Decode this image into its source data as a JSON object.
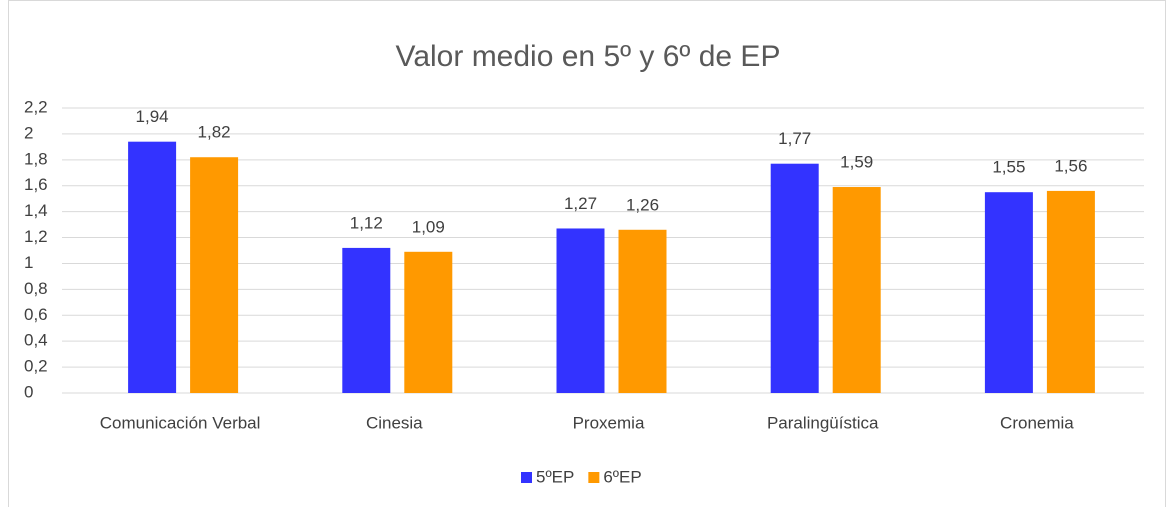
{
  "chart_data": {
    "type": "bar",
    "title": "Valor medio en 5º y 6º de EP",
    "categories": [
      "Comunicación Verbal",
      "Cinesia",
      "Proxemia",
      "Paralingüística",
      "Cronemia"
    ],
    "series": [
      {
        "name": "5ºEP",
        "color": "#3333ff",
        "values": [
          1.94,
          1.12,
          1.27,
          1.77,
          1.55
        ],
        "value_labels": [
          "1,94",
          "1,12",
          "1,27",
          "1,77",
          "1,55"
        ]
      },
      {
        "name": "6ºEP",
        "color": "#ff9900",
        "values": [
          1.82,
          1.09,
          1.26,
          1.59,
          1.56
        ],
        "value_labels": [
          "1,82",
          "1,09",
          "1,26",
          "1,59",
          "1,56"
        ]
      }
    ],
    "ylim": [
      0,
      2.2
    ],
    "yticks": [
      0,
      {
        "value": 0.2,
        "label": "0,2"
      },
      {
        "value": 0.4,
        "label": "0,4"
      },
      {
        "value": 0.6,
        "label": "0,6"
      },
      {
        "value": 0.8,
        "label": "0,8"
      },
      1,
      {
        "value": 1.2,
        "label": "1,2"
      },
      {
        "value": 1.4,
        "label": "1,4"
      },
      {
        "value": 1.6,
        "label": "1,6"
      },
      {
        "value": 1.8,
        "label": "1,8"
      },
      2,
      {
        "value": 2.2,
        "label": "2,2"
      }
    ],
    "grid": true,
    "legend": "bottom"
  }
}
